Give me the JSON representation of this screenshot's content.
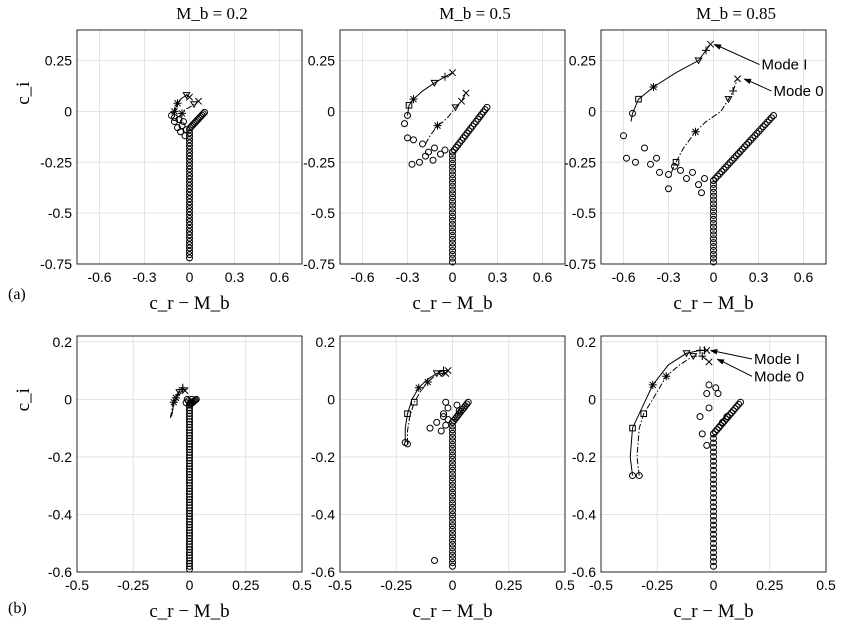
{
  "column_titles": [
    "M_b = 0.2",
    "M_b = 0.5",
    "M_b = 0.85"
  ],
  "row_labels": [
    "(a)",
    "(b)"
  ],
  "annotations": [
    "Mode I",
    "Mode 0"
  ],
  "chart_data": [
    {
      "type": "scatter",
      "row": 0,
      "col": 0,
      "title": "M_b = 0.2",
      "xlabel": "c_r − M_b",
      "ylabel": "c_i",
      "xlim": [
        -0.75,
        0.75
      ],
      "ylim": [
        -0.75,
        0.4
      ],
      "xticks": [
        "-0.6",
        "-0.3",
        "0",
        "0.3",
        "0.6"
      ],
      "xtick_values": [
        -0.6,
        -0.3,
        0,
        0.3,
        0.6
      ],
      "yticks": [
        "0.25",
        "0",
        "-0.25",
        "-0.5",
        "-0.75"
      ],
      "ytick_values": [
        0.25,
        0,
        -0.25,
        -0.5,
        -0.75
      ],
      "grid": true,
      "annotations": [],
      "series": [
        {
          "kind": "line",
          "style": "solid",
          "x": [
            -0.1,
            -0.08,
            -0.06,
            -0.04,
            -0.02,
            0.0
          ],
          "y": [
            0.0,
            0.04,
            0.06,
            0.07,
            0.08,
            0.07
          ],
          "markers": [
            "*",
            "*",
            "",
            "",
            "▽",
            "x"
          ]
        },
        {
          "kind": "line",
          "style": "dashdot",
          "x": [
            -0.07,
            -0.05,
            -0.03,
            0.0,
            0.03,
            0.06
          ],
          "y": [
            -0.03,
            -0.01,
            0.01,
            0.02,
            0.035,
            0.05
          ],
          "markers": [
            "",
            "*",
            "",
            "",
            "▽",
            "x"
          ]
        },
        {
          "kind": "branch",
          "x0": 0.005,
          "y0": -0.08,
          "x1": 0.1,
          "y1": -0.005,
          "n": 12
        },
        {
          "kind": "column",
          "x": 0.0,
          "y0": -0.09,
          "y1": -0.72,
          "n": 40
        },
        {
          "kind": "points",
          "x": [
            -0.12,
            -0.1,
            -0.07,
            -0.05,
            -0.08,
            -0.04,
            -0.02,
            -0.1,
            -0.06,
            -0.03
          ],
          "y": [
            -0.02,
            -0.05,
            -0.04,
            -0.07,
            -0.08,
            -0.05,
            -0.09,
            -0.03,
            -0.1,
            -0.12
          ]
        }
      ]
    },
    {
      "type": "scatter",
      "row": 0,
      "col": 1,
      "title": "M_b = 0.5",
      "xlabel": "c_r − M_b",
      "ylabel": "",
      "xlim": [
        -0.75,
        0.75
      ],
      "ylim": [
        -0.75,
        0.4
      ],
      "xticks": [
        "-0.6",
        "-0.3",
        "0",
        "0.3",
        "0.6"
      ],
      "xtick_values": [
        -0.6,
        -0.3,
        0,
        0.3,
        0.6
      ],
      "yticks": [
        "0.25",
        "0",
        "-0.25",
        "-0.5",
        "-0.75"
      ],
      "ytick_values": [
        0.25,
        0,
        -0.25,
        -0.5,
        -0.75
      ],
      "grid": true,
      "annotations": [],
      "series": [
        {
          "kind": "line",
          "style": "solid",
          "x": [
            -0.3,
            -0.29,
            -0.26,
            -0.2,
            -0.12,
            -0.05,
            0.0
          ],
          "y": [
            -0.02,
            0.03,
            0.06,
            0.1,
            0.14,
            0.17,
            0.19
          ],
          "markers": [
            "o",
            "▢",
            "*",
            "",
            "▽",
            "+",
            "x"
          ]
        },
        {
          "kind": "line",
          "style": "dashdot",
          "x": [
            -0.18,
            -0.15,
            -0.1,
            -0.06,
            -0.02,
            0.02,
            0.06,
            0.09
          ],
          "y": [
            -0.16,
            -0.12,
            -0.07,
            -0.05,
            -0.02,
            0.02,
            0.05,
            0.09
          ],
          "markers": [
            "",
            "",
            "*",
            "",
            "",
            "▽",
            "x",
            "x"
          ]
        },
        {
          "kind": "branch",
          "x0": 0.0,
          "y0": -0.2,
          "x1": 0.23,
          "y1": 0.02,
          "n": 20
        },
        {
          "kind": "column",
          "x": 0.0,
          "y0": -0.2,
          "y1": -0.74,
          "n": 30
        },
        {
          "kind": "points",
          "x": [
            -0.32,
            -0.3,
            -0.26,
            -0.2,
            -0.16,
            -0.12,
            -0.18,
            -0.22,
            -0.27,
            -0.13,
            -0.08,
            -0.05
          ],
          "y": [
            -0.06,
            -0.13,
            -0.14,
            -0.16,
            -0.2,
            -0.18,
            -0.22,
            -0.25,
            -0.26,
            -0.24,
            -0.21,
            -0.19
          ]
        }
      ]
    },
    {
      "type": "scatter",
      "row": 0,
      "col": 2,
      "title": "M_b = 0.85",
      "xlabel": "c_r − M_b",
      "ylabel": "",
      "xlim": [
        -0.75,
        0.75
      ],
      "ylim": [
        -0.75,
        0.4
      ],
      "xticks": [
        "-0.6",
        "-0.3",
        "0",
        "0.3",
        "0.6"
      ],
      "xtick_values": [
        -0.6,
        -0.3,
        0,
        0.3,
        0.6
      ],
      "yticks": [
        "0.25",
        "0",
        "-0.25",
        "-0.5",
        "-0.75"
      ],
      "ytick_values": [
        0.25,
        0,
        -0.25,
        -0.5,
        -0.75
      ],
      "grid": true,
      "annotations": [
        {
          "text": "Mode I",
          "x": 0.32,
          "y": 0.23,
          "tx": -0.02,
          "ty": 0.33
        },
        {
          "text": "Mode 0",
          "x": 0.4,
          "y": 0.1,
          "tx": 0.18,
          "ty": 0.16
        }
      ],
      "series": [
        {
          "kind": "line",
          "style": "solid",
          "x": [
            -0.55,
            -0.54,
            -0.5,
            -0.4,
            -0.25,
            -0.1,
            -0.05,
            -0.02
          ],
          "y": [
            -0.05,
            -0.01,
            0.06,
            0.12,
            0.19,
            0.25,
            0.3,
            0.33
          ],
          "markers": [
            "",
            "o",
            "▢",
            "*",
            "",
            "▽",
            "+",
            "x"
          ]
        },
        {
          "kind": "line",
          "style": "dashdot",
          "x": [
            -0.28,
            -0.27,
            -0.25,
            -0.2,
            -0.12,
            -0.05,
            0.05,
            0.1,
            0.13,
            0.16
          ],
          "y": [
            -0.3,
            -0.28,
            -0.25,
            -0.18,
            -0.1,
            -0.05,
            0.0,
            0.06,
            0.1,
            0.16
          ],
          "markers": [
            "",
            "",
            "▢",
            "",
            "*",
            "",
            "",
            "▽",
            "+",
            "x"
          ]
        },
        {
          "kind": "branch",
          "x0": 0.0,
          "y0": -0.34,
          "x1": 0.4,
          "y1": -0.02,
          "n": 30
        },
        {
          "kind": "column",
          "x": 0.0,
          "y0": -0.34,
          "y1": -0.74,
          "n": 22
        },
        {
          "kind": "points",
          "x": [
            -0.6,
            -0.58,
            -0.52,
            -0.46,
            -0.42,
            -0.36,
            -0.3,
            -0.26,
            -0.22,
            -0.18,
            -0.14,
            -0.1,
            -0.08,
            -0.06,
            -0.3,
            -0.38
          ],
          "y": [
            -0.12,
            -0.23,
            -0.25,
            -0.18,
            -0.26,
            -0.3,
            -0.31,
            -0.27,
            -0.29,
            -0.33,
            -0.3,
            -0.36,
            -0.4,
            -0.33,
            -0.38,
            -0.23
          ]
        }
      ]
    },
    {
      "type": "scatter",
      "row": 1,
      "col": 0,
      "title": "",
      "xlabel": "c_r − M_b",
      "ylabel": "c_i",
      "xlim": [
        -0.5,
        0.5
      ],
      "ylim": [
        -0.6,
        0.22
      ],
      "xticks": [
        "-0.5",
        "-0.25",
        "0",
        "0.25",
        "0.5"
      ],
      "xtick_values": [
        -0.5,
        -0.25,
        0,
        0.25,
        0.5
      ],
      "yticks": [
        "0.2",
        "0",
        "-0.2",
        "-0.4",
        "-0.6"
      ],
      "ytick_values": [
        0.2,
        0,
        -0.2,
        -0.4,
        -0.6
      ],
      "grid": true,
      "annotations": [],
      "series": [
        {
          "kind": "line",
          "style": "solid",
          "x": [
            -0.08,
            -0.075,
            -0.07,
            -0.06,
            -0.045,
            -0.03,
            -0.02
          ],
          "y": [
            -0.06,
            -0.04,
            -0.01,
            0.01,
            0.03,
            0.04,
            0.03
          ],
          "markers": [
            "",
            "",
            "*",
            "",
            "",
            "+",
            "x"
          ]
        },
        {
          "kind": "line",
          "style": "dashdot",
          "x": [
            -0.085,
            -0.08,
            -0.075,
            -0.06,
            -0.045,
            -0.03
          ],
          "y": [
            -0.065,
            -0.045,
            -0.02,
            0.005,
            0.025,
            0.035
          ],
          "markers": [
            "",
            "",
            "",
            "*",
            "▽",
            "+"
          ]
        },
        {
          "kind": "branch",
          "x0": 0.0,
          "y0": -0.02,
          "x1": 0.03,
          "y1": 0.0,
          "n": 8
        },
        {
          "kind": "column",
          "x": 0.0,
          "y0": -0.02,
          "y1": -0.59,
          "n": 60
        },
        {
          "kind": "points",
          "x": [
            -0.01,
            0.01,
            -0.005,
            0.005,
            -0.015
          ],
          "y": [
            0.0,
            0.0,
            -0.005,
            -0.01,
            -0.012
          ]
        }
      ]
    },
    {
      "type": "scatter",
      "row": 1,
      "col": 1,
      "title": "",
      "xlabel": "c_r − M_b",
      "ylabel": "",
      "xlim": [
        -0.5,
        0.5
      ],
      "ylim": [
        -0.6,
        0.22
      ],
      "xticks": [
        "-0.5",
        "-0.25",
        "0",
        "0.25",
        "0.5"
      ],
      "xtick_values": [
        -0.5,
        -0.25,
        0,
        0.25,
        0.5
      ],
      "yticks": [
        "0.2",
        "0",
        "-0.2",
        "-0.4",
        "-0.6"
      ],
      "ytick_values": [
        0.2,
        0,
        -0.2,
        -0.4,
        -0.6
      ],
      "grid": true,
      "annotations": [],
      "series": [
        {
          "kind": "line",
          "style": "solid",
          "x": [
            -0.21,
            -0.21,
            -0.2,
            -0.18,
            -0.15,
            -0.11,
            -0.07,
            -0.04,
            -0.02
          ],
          "y": [
            -0.15,
            -0.1,
            -0.05,
            0.0,
            0.04,
            0.07,
            0.09,
            0.1,
            0.1
          ],
          "markers": [
            "o",
            "",
            "▢",
            "",
            "*",
            "",
            "▽",
            "+",
            "x"
          ]
        },
        {
          "kind": "line",
          "style": "dashdot",
          "x": [
            -0.2,
            -0.2,
            -0.19,
            -0.17,
            -0.14,
            -0.11,
            -0.08,
            -0.05,
            -0.03
          ],
          "y": [
            -0.155,
            -0.11,
            -0.06,
            -0.01,
            0.03,
            0.06,
            0.08,
            0.09,
            0.09
          ],
          "markers": [
            "o",
            "",
            "",
            "▢",
            "",
            "*",
            "",
            "▽",
            "x"
          ]
        },
        {
          "kind": "branch",
          "x0": 0.0,
          "y0": -0.08,
          "x1": 0.07,
          "y1": -0.01,
          "n": 12
        },
        {
          "kind": "column",
          "x": 0.0,
          "y0": -0.08,
          "y1": -0.58,
          "n": 40
        },
        {
          "kind": "points",
          "x": [
            -0.03,
            -0.02,
            -0.04,
            -0.02,
            -0.03,
            0.02,
            0.03,
            -0.1,
            -0.07,
            -0.05,
            -0.04,
            -0.08
          ],
          "y": [
            -0.01,
            -0.03,
            -0.05,
            -0.07,
            -0.09,
            -0.02,
            -0.04,
            -0.1,
            -0.08,
            -0.11,
            -0.06,
            -0.56
          ]
        }
      ]
    },
    {
      "type": "scatter",
      "row": 1,
      "col": 2,
      "title": "",
      "xlabel": "c_r − M_b",
      "ylabel": "",
      "xlim": [
        -0.5,
        0.5
      ],
      "ylim": [
        -0.6,
        0.22
      ],
      "xticks": [
        "-0.5",
        "-0.25",
        "0",
        "0.25",
        "0.5"
      ],
      "xtick_values": [
        -0.5,
        -0.25,
        0,
        0.25,
        0.5
      ],
      "yticks": [
        "0.2",
        "0",
        "-0.2",
        "-0.4",
        "-0.6"
      ],
      "ytick_values": [
        0.2,
        0,
        -0.2,
        -0.4,
        -0.6
      ],
      "grid": true,
      "annotations": [
        {
          "text": "Mode I",
          "x": 0.18,
          "y": 0.14,
          "tx": -0.03,
          "ty": 0.17
        },
        {
          "text": "Mode 0",
          "x": 0.18,
          "y": 0.08,
          "tx": 0.0,
          "ty": 0.14
        }
      ],
      "series": [
        {
          "kind": "line",
          "style": "solid",
          "x": [
            -0.36,
            -0.37,
            -0.36,
            -0.33,
            -0.27,
            -0.2,
            -0.12,
            -0.06,
            -0.04,
            -0.03
          ],
          "y": [
            -0.265,
            -0.2,
            -0.1,
            -0.05,
            0.05,
            0.12,
            0.16,
            0.17,
            0.17,
            0.17
          ],
          "markers": [
            "o",
            "",
            "▢",
            "",
            "*",
            "",
            "▽",
            "+",
            "+",
            "x"
          ]
        },
        {
          "kind": "line",
          "style": "dashdot",
          "x": [
            -0.33,
            -0.34,
            -0.33,
            -0.31,
            -0.27,
            -0.21,
            -0.15,
            -0.09,
            -0.05,
            -0.02
          ],
          "y": [
            -0.265,
            -0.2,
            -0.1,
            -0.05,
            0.0,
            0.08,
            0.12,
            0.15,
            0.15,
            0.13
          ],
          "markers": [
            "o",
            "",
            "",
            "▢",
            "",
            "*",
            "",
            "▽",
            "+",
            "x"
          ]
        },
        {
          "kind": "branch",
          "x0": 0.0,
          "y0": -0.12,
          "x1": 0.12,
          "y1": -0.01,
          "n": 16
        },
        {
          "kind": "column",
          "x": 0.0,
          "y0": -0.12,
          "y1": -0.58,
          "n": 30
        },
        {
          "kind": "points",
          "x": [
            -0.02,
            -0.03,
            0.01,
            0.02,
            -0.06,
            -0.05,
            -0.03,
            0.04,
            0.06,
            -0.02
          ],
          "y": [
            0.05,
            0.02,
            0.04,
            0.02,
            -0.06,
            -0.12,
            -0.16,
            -0.08,
            -0.06,
            -0.03
          ]
        }
      ]
    }
  ]
}
